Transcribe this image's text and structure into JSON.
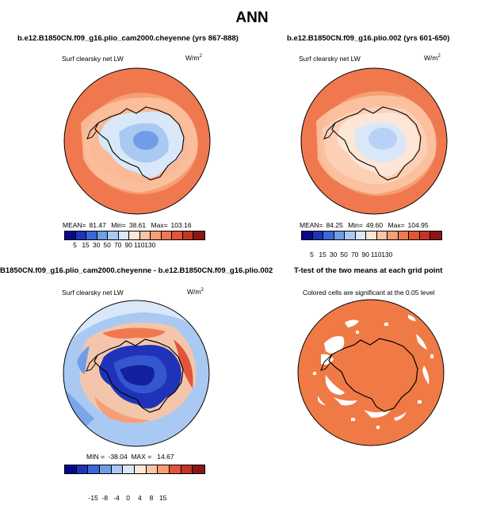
{
  "main_title": "ANN",
  "panels": {
    "p1": {
      "title": "b.e12.B1850CN.f09_g16.plio_cam2000.cheyenne (yrs 867-888)",
      "variable": "Surf clearsky net LW",
      "units": "W/m",
      "units_sup": "2",
      "mean_label": "MEAN=",
      "mean_value": "81.47",
      "min_label": "Min=",
      "min_value": "38.61",
      "max_label": "Max=",
      "max_value": "103.16"
    },
    "p2": {
      "title": "b.e12.B1850CN.f09_g16.plio.002 (yrs 601-650)",
      "variable": "Surf clearsky net LW",
      "units": "W/m",
      "units_sup": "2",
      "mean_label": "MEAN=",
      "mean_value": "84.25",
      "min_label": "Min=",
      "min_value": "49.60",
      "max_label": "Max=",
      "max_value": "104.95"
    },
    "p3": {
      "title": "B1850CN.f09_g16.plio_cam2000.cheyenne - b.e12.B1850CN.f09_g16.plio.002",
      "variable": "Surf clearsky net LW",
      "units": "W/m",
      "units_sup": "2",
      "stats_line": "MIN =  -38.04  MAX =   14.67"
    },
    "p4": {
      "title": "T-test of the two means at each grid point",
      "note": "Colored cells are significant at the 0.05 level"
    }
  },
  "colorbars": {
    "absolute": {
      "colors": [
        "#08088a",
        "#1f33b8",
        "#3d66d8",
        "#6f9de8",
        "#a9c9f2",
        "#d8e8f8",
        "#fde6d6",
        "#fbc5a4",
        "#f79e74",
        "#f07850",
        "#e2553a",
        "#c63426",
        "#8e1515"
      ],
      "ticks": [
        "5",
        "15",
        "30",
        "50",
        "70",
        "90",
        "110",
        "130"
      ]
    },
    "difference": {
      "colors": [
        "#08088a",
        "#1f33b8",
        "#3d66d8",
        "#6f9de8",
        "#a9c9f2",
        "#d8e8f8",
        "#fde6d6",
        "#fbc5a4",
        "#f79e74",
        "#e2553a",
        "#c63426",
        "#8e1515"
      ],
      "ticks": [
        "-15",
        "-8",
        "-4",
        "0",
        "4",
        "8",
        "15"
      ]
    }
  },
  "map_colors": {
    "ocean_warm": "#f0784f",
    "ocean_mid": "#f7a27a",
    "ocean_light": "#fcd3bb",
    "ice_light": "#d8e8f8",
    "ice_mid": "#a9c9f2",
    "ice_blue": "#6f9de8",
    "deep_blue": "#1f33b8",
    "sig_orange": "#f07a45"
  }
}
